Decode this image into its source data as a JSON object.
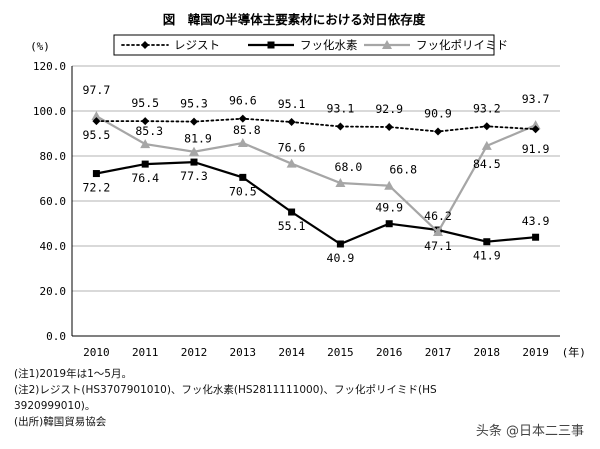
{
  "chart_data": {
    "type": "line",
    "title": "図　韓国の半導体主要素材における対日依存度",
    "ylabel": "(%)",
    "xlabel": "",
    "x_unit": "(年)",
    "ylim": [
      0,
      120
    ],
    "yticks": [
      "0.0",
      "20.0",
      "40.0",
      "60.0",
      "80.0",
      "100.0",
      "120.0"
    ],
    "ytick_values": [
      0,
      20,
      40,
      60,
      80,
      100,
      120
    ],
    "categories": [
      "2010",
      "2011",
      "2012",
      "2013",
      "2014",
      "2015",
      "2016",
      "2017",
      "2018",
      "2019"
    ],
    "grid": true,
    "legend_position": "top",
    "series": [
      {
        "name": "レジスト",
        "style": "dotted",
        "color": "#000000",
        "values": [
          95.5,
          95.5,
          95.3,
          96.6,
          95.1,
          93.1,
          92.9,
          90.9,
          93.2,
          91.9
        ],
        "labels": [
          "95.5",
          "95.5",
          "95.3",
          "96.6",
          "95.1",
          "93.1",
          "92.9",
          "90.9",
          "93.2",
          "91.9"
        ]
      },
      {
        "name": "フッ化水素",
        "style": "solid",
        "color": "#000000",
        "values": [
          72.2,
          76.4,
          77.3,
          70.5,
          55.1,
          40.9,
          49.9,
          47.1,
          41.9,
          43.9
        ],
        "labels": [
          "72.2",
          "76.4",
          "77.3",
          "70.5",
          "55.1",
          "40.9",
          "49.9",
          "47.1",
          "41.9",
          "43.9"
        ]
      },
      {
        "name": "フッ化ポリイミド",
        "style": "solid",
        "color": "#a6a6a6",
        "values": [
          97.7,
          85.3,
          81.9,
          85.8,
          76.6,
          68.0,
          66.8,
          46.2,
          84.5,
          93.7
        ],
        "labels": [
          "97.7",
          "85.3",
          "81.9",
          "85.8",
          "76.6",
          "68.0",
          "66.8",
          "46.2",
          "84.5",
          "93.7"
        ]
      }
    ]
  },
  "notes": [
    "(注1)2019年は1～5月。",
    "(注2)レジスト(HS3707901010)、フッ化水素(HS2811111000)、フッ化ポリイミド(HS",
    "3920999010)。",
    "(出所)韓国貿易協会"
  ],
  "watermark": "头条 @日本二三事"
}
